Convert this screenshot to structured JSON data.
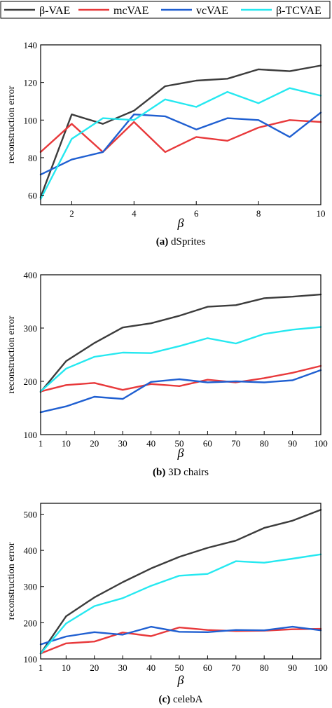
{
  "legend": [
    {
      "label": "β-VAE",
      "color": "#3c3c3c"
    },
    {
      "label": "mcVAE",
      "color": "#e8393b"
    },
    {
      "label": "vcVAE",
      "color": "#1f5fd1"
    },
    {
      "label": "β-TCVAE",
      "color": "#25e8f0"
    }
  ],
  "chart_data": [
    {
      "type": "line",
      "caption_bold": "(a)",
      "caption_text": " dSprites",
      "xlabel": "β",
      "ylabel": "reconstruction error",
      "xlim": [
        1,
        10
      ],
      "ylim": [
        55,
        140
      ],
      "xticks": [
        2,
        4,
        6,
        8,
        10
      ],
      "yticks": [
        60,
        80,
        100,
        120,
        140
      ],
      "x": [
        1,
        2,
        3,
        4,
        5,
        6,
        7,
        8,
        9,
        10
      ],
      "series": [
        {
          "name": "β-VAE",
          "color": "#3c3c3c",
          "values": [
            59,
            103,
            98,
            105,
            118,
            121,
            122,
            127,
            126,
            129
          ]
        },
        {
          "name": "mcVAE",
          "color": "#e8393b",
          "values": [
            83,
            98,
            83,
            99,
            83,
            91,
            89,
            96,
            100,
            99
          ]
        },
        {
          "name": "vcVAE",
          "color": "#1f5fd1",
          "values": [
            71,
            79,
            83,
            103,
            102,
            95,
            101,
            100,
            91,
            104
          ]
        },
        {
          "name": "β-TCVAE",
          "color": "#25e8f0",
          "values": [
            58,
            90,
            101,
            100,
            111,
            107,
            115,
            109,
            117,
            113
          ]
        }
      ]
    },
    {
      "type": "line",
      "caption_bold": "(b)",
      "caption_text": " 3D chairs",
      "xlabel": "β",
      "ylabel": "reconstruction error",
      "xlim": [
        1,
        100
      ],
      "ylim": [
        100,
        400
      ],
      "xticks": [
        1,
        10,
        20,
        30,
        40,
        50,
        60,
        70,
        80,
        90,
        100
      ],
      "yticks": [
        100,
        200,
        300,
        400
      ],
      "x": [
        1,
        10,
        20,
        30,
        40,
        50,
        60,
        70,
        80,
        90,
        100
      ],
      "series": [
        {
          "name": "β-VAE",
          "color": "#3c3c3c",
          "values": [
            180,
            238,
            272,
            301,
            309,
            323,
            340,
            343,
            356,
            359,
            363
          ]
        },
        {
          "name": "mcVAE",
          "color": "#e8393b",
          "values": [
            181,
            193,
            197,
            184,
            195,
            191,
            203,
            198,
            206,
            216,
            229
          ]
        },
        {
          "name": "vcVAE",
          "color": "#1f5fd1",
          "values": [
            142,
            153,
            171,
            167,
            199,
            204,
            198,
            200,
            198,
            202,
            221
          ]
        },
        {
          "name": "β-TCVAE",
          "color": "#25e8f0",
          "values": [
            181,
            224,
            246,
            254,
            253,
            266,
            281,
            271,
            289,
            297,
            302
          ]
        }
      ]
    },
    {
      "type": "line",
      "caption_bold": "(c)",
      "caption_text": " celebA",
      "xlabel": "β",
      "ylabel": "reconstruction error",
      "xlim": [
        1,
        100
      ],
      "ylim": [
        100,
        530
      ],
      "xticks": [
        1,
        10,
        20,
        30,
        40,
        50,
        60,
        70,
        80,
        90,
        100
      ],
      "yticks": [
        100,
        200,
        300,
        400,
        500
      ],
      "x": [
        1,
        10,
        20,
        30,
        40,
        50,
        60,
        70,
        80,
        90,
        100
      ],
      "series": [
        {
          "name": "β-VAE",
          "color": "#3c3c3c",
          "values": [
            115,
            218,
            270,
            312,
            350,
            382,
            407,
            427,
            462,
            482,
            512
          ]
        },
        {
          "name": "mcVAE",
          "color": "#e8393b",
          "values": [
            115,
            143,
            148,
            173,
            163,
            187,
            180,
            177,
            178,
            182,
            183
          ]
        },
        {
          "name": "vcVAE",
          "color": "#1f5fd1",
          "values": [
            140,
            162,
            174,
            167,
            189,
            175,
            174,
            180,
            179,
            189,
            179
          ]
        },
        {
          "name": "β-TCVAE",
          "color": "#25e8f0",
          "values": [
            115,
            198,
            246,
            268,
            302,
            330,
            335,
            370,
            366,
            377,
            389
          ]
        }
      ]
    }
  ]
}
